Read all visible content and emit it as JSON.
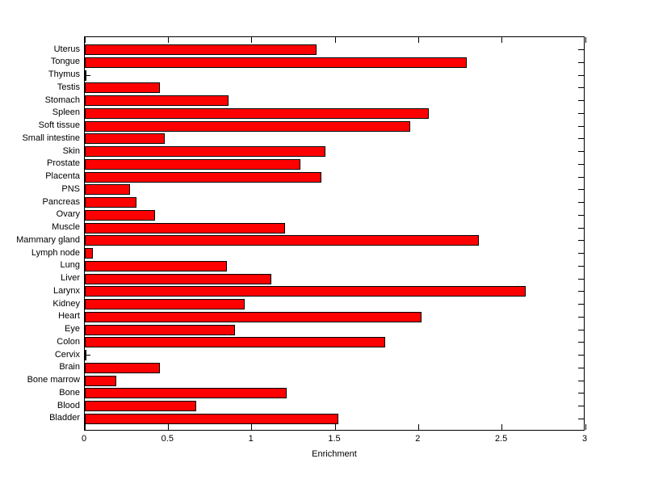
{
  "figure": {
    "background": "#ffffff"
  },
  "chart_data": {
    "type": "bar",
    "orientation": "horizontal",
    "title": "",
    "xlabel": "Enrichment",
    "ylabel": "",
    "xlim": [
      0,
      3
    ],
    "x_ticks": [
      0,
      0.5,
      1,
      1.5,
      2,
      2.5,
      3
    ],
    "x_tick_labels": [
      "0",
      "0.5",
      "1",
      "1.5",
      "2",
      "2.5",
      "3"
    ],
    "grid": false,
    "bar_fill_color": "#ff0000",
    "bar_edge_color": "#000000",
    "axis_color": "#000000",
    "categories": [
      "Uterus",
      "Tongue",
      "Thymus",
      "Testis",
      "Stomach",
      "Spleen",
      "Soft tissue",
      "Small intestine",
      "Skin",
      "Prostate",
      "Placenta",
      "PNS",
      "Pancreas",
      "Ovary",
      "Muscle",
      "Mammary gland",
      "Lymph node",
      "Lung",
      "Liver",
      "Larynx",
      "Kidney",
      "Heart",
      "Eye",
      "Colon",
      "Cervix",
      "Brain",
      "Bone marrow",
      "Bone",
      "Blood",
      "Bladder"
    ],
    "values": [
      1.39,
      2.29,
      0.01,
      0.45,
      0.86,
      2.06,
      1.95,
      0.48,
      1.44,
      1.29,
      1.42,
      0.27,
      0.31,
      0.42,
      1.2,
      2.36,
      0.05,
      0.85,
      1.12,
      2.64,
      0.96,
      2.02,
      0.9,
      1.8,
      0.01,
      0.45,
      0.19,
      1.21,
      0.67,
      1.52
    ]
  }
}
